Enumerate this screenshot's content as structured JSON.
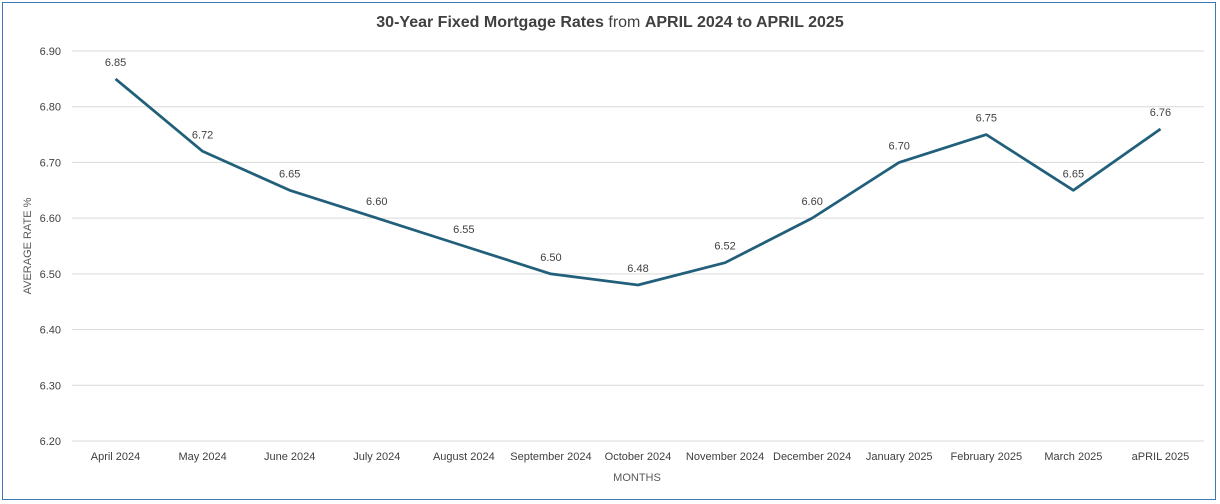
{
  "chart_data": {
    "type": "line",
    "title_part1": "30-Year Fixed Mortgage Rates",
    "title_part2": " from ",
    "title_part3": "APRIL 2024 to APRIL 2025",
    "xlabel": "MONTHS",
    "ylabel": "AVERAGE RATE %",
    "ylim": [
      6.2,
      6.9
    ],
    "yticks": [
      "6.20",
      "6.30",
      "6.40",
      "6.50",
      "6.60",
      "6.70",
      "6.80",
      "6.90"
    ],
    "categories": [
      "April 2024",
      "May 2024",
      "June 2024",
      "July 2024",
      "August 2024",
      "September 2024",
      "October 2024",
      "November 2024",
      "December 2024",
      "January 2025",
      "February 2025",
      "March 2025",
      "aPRIL 2025"
    ],
    "values": [
      6.85,
      6.72,
      6.65,
      6.6,
      6.55,
      6.5,
      6.48,
      6.52,
      6.6,
      6.7,
      6.75,
      6.65,
      6.76
    ],
    "data_labels": [
      "6.85",
      "6.72",
      "6.65",
      "6.60",
      "6.55",
      "6.50",
      "6.48",
      "6.52",
      "6.60",
      "6.70",
      "6.75",
      "6.65",
      "6.76"
    ],
    "grid": true,
    "legend": "none",
    "line_color": "#215f7a",
    "grid_color": "#d9d9d9"
  }
}
